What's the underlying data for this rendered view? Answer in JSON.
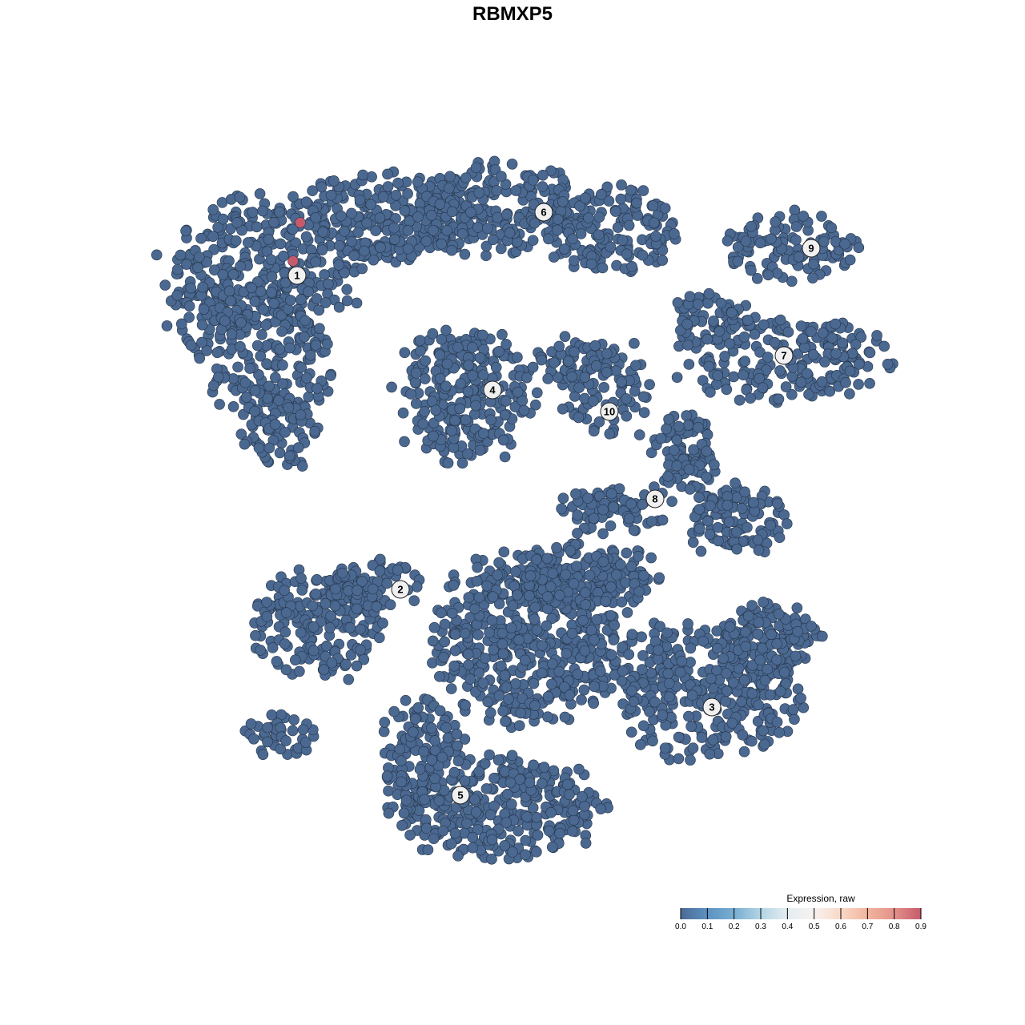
{
  "chart_data": {
    "type": "scatter",
    "title": "RBMXP5",
    "xlabel": "",
    "ylabel": "",
    "axes_visible": false,
    "grid": false,
    "xlim": [
      -50,
      50
    ],
    "ylim": [
      -50,
      50
    ],
    "point_color_default": "#4a6890",
    "point_outline": "#26354a",
    "base_expression": 0.0,
    "clusters": [
      {
        "id": "1",
        "label_pos": [
          -26.9,
          29.6
        ],
        "blobs": [
          [
            -31,
            31,
            11,
            8,
            260
          ],
          [
            -30,
            19,
            7,
            9,
            190
          ],
          [
            -29,
            10,
            5,
            4,
            60
          ],
          [
            -38,
            26,
            5,
            6,
            90
          ]
        ]
      },
      {
        "id": "6",
        "label_pos": [
          3.9,
          37.5
        ],
        "blobs": [
          [
            -16,
            37,
            11,
            5,
            230
          ],
          [
            -2,
            38,
            11,
            5,
            230
          ],
          [
            12,
            35,
            8,
            5,
            150
          ]
        ]
      },
      {
        "id": "4",
        "label_pos": [
          -2.5,
          15.3
        ],
        "blobs": [
          [
            -6,
            15,
            8,
            8,
            260
          ]
        ]
      },
      {
        "id": "9",
        "label_pos": [
          37.3,
          33.0
        ],
        "blobs": [
          [
            35,
            33,
            8,
            4,
            110
          ]
        ]
      },
      {
        "id": "7",
        "label_pos": [
          33.9,
          19.6
        ],
        "blobs": [
          [
            34,
            19,
            12,
            5,
            200
          ],
          [
            24,
            24,
            5,
            3,
            60
          ]
        ]
      },
      {
        "id": "10",
        "label_pos": [
          12.1,
          12.6
        ],
        "blobs": [
          [
            12,
            15,
            5,
            6,
            80
          ],
          [
            8,
            19,
            5,
            2.5,
            50
          ]
        ]
      },
      {
        "id": "8",
        "label_pos": [
          17.8,
          1.7
        ],
        "blobs": [
          [
            21,
            7,
            4,
            5,
            90
          ],
          [
            28,
            -1,
            6,
            4,
            110
          ],
          [
            12,
            0,
            6,
            3,
            70
          ]
        ]
      },
      {
        "id": "2",
        "label_pos": [
          -14.0,
          -9.6
        ],
        "blobs": [
          [
            -24,
            -14,
            8,
            6,
            200
          ],
          [
            -17,
            -9,
            5,
            3,
            70
          ],
          [
            -29,
            -28,
            4,
            2.5,
            40
          ]
        ]
      },
      {
        "id": "3",
        "label_pos": [
          24.9,
          -24.3
        ],
        "blobs": [
          [
            24,
            -22,
            11,
            8,
            330
          ],
          [
            32,
            -16,
            6,
            4,
            120
          ]
        ]
      },
      {
        "id": "5",
        "label_pos": [
          -6.5,
          -35.3
        ],
        "blobs": [
          [
            -2,
            -37,
            12,
            6,
            330
          ],
          [
            -11,
            -30,
            5,
            6,
            120
          ]
        ]
      },
      {
        "id": "",
        "label_pos": null,
        "blobs": [
          [
            2,
            -16,
            11,
            10,
            520
          ],
          [
            9,
            -8,
            8,
            4,
            170
          ]
        ]
      }
    ],
    "highlighted_points": [
      {
        "x": -26.5,
        "y": 36.2,
        "expression": 0.9
      },
      {
        "x": -27.4,
        "y": 31.4,
        "expression": 0.9
      }
    ],
    "legend": {
      "title": "Expression, raw",
      "placement": "bottom-right",
      "ticks": [
        "0.0",
        "0.1",
        "0.2",
        "0.3",
        "0.4",
        "0.5",
        "0.6",
        "0.7",
        "0.8",
        "0.9"
      ],
      "range": [
        0.0,
        0.9
      ],
      "colors": [
        "#4b6a93",
        "#5d92c2",
        "#79aed2",
        "#b3d4e4",
        "#e4edf2",
        "#f7f2ef",
        "#f9d8c7",
        "#f2b59d",
        "#e3918a",
        "#c65a6b"
      ]
    }
  }
}
